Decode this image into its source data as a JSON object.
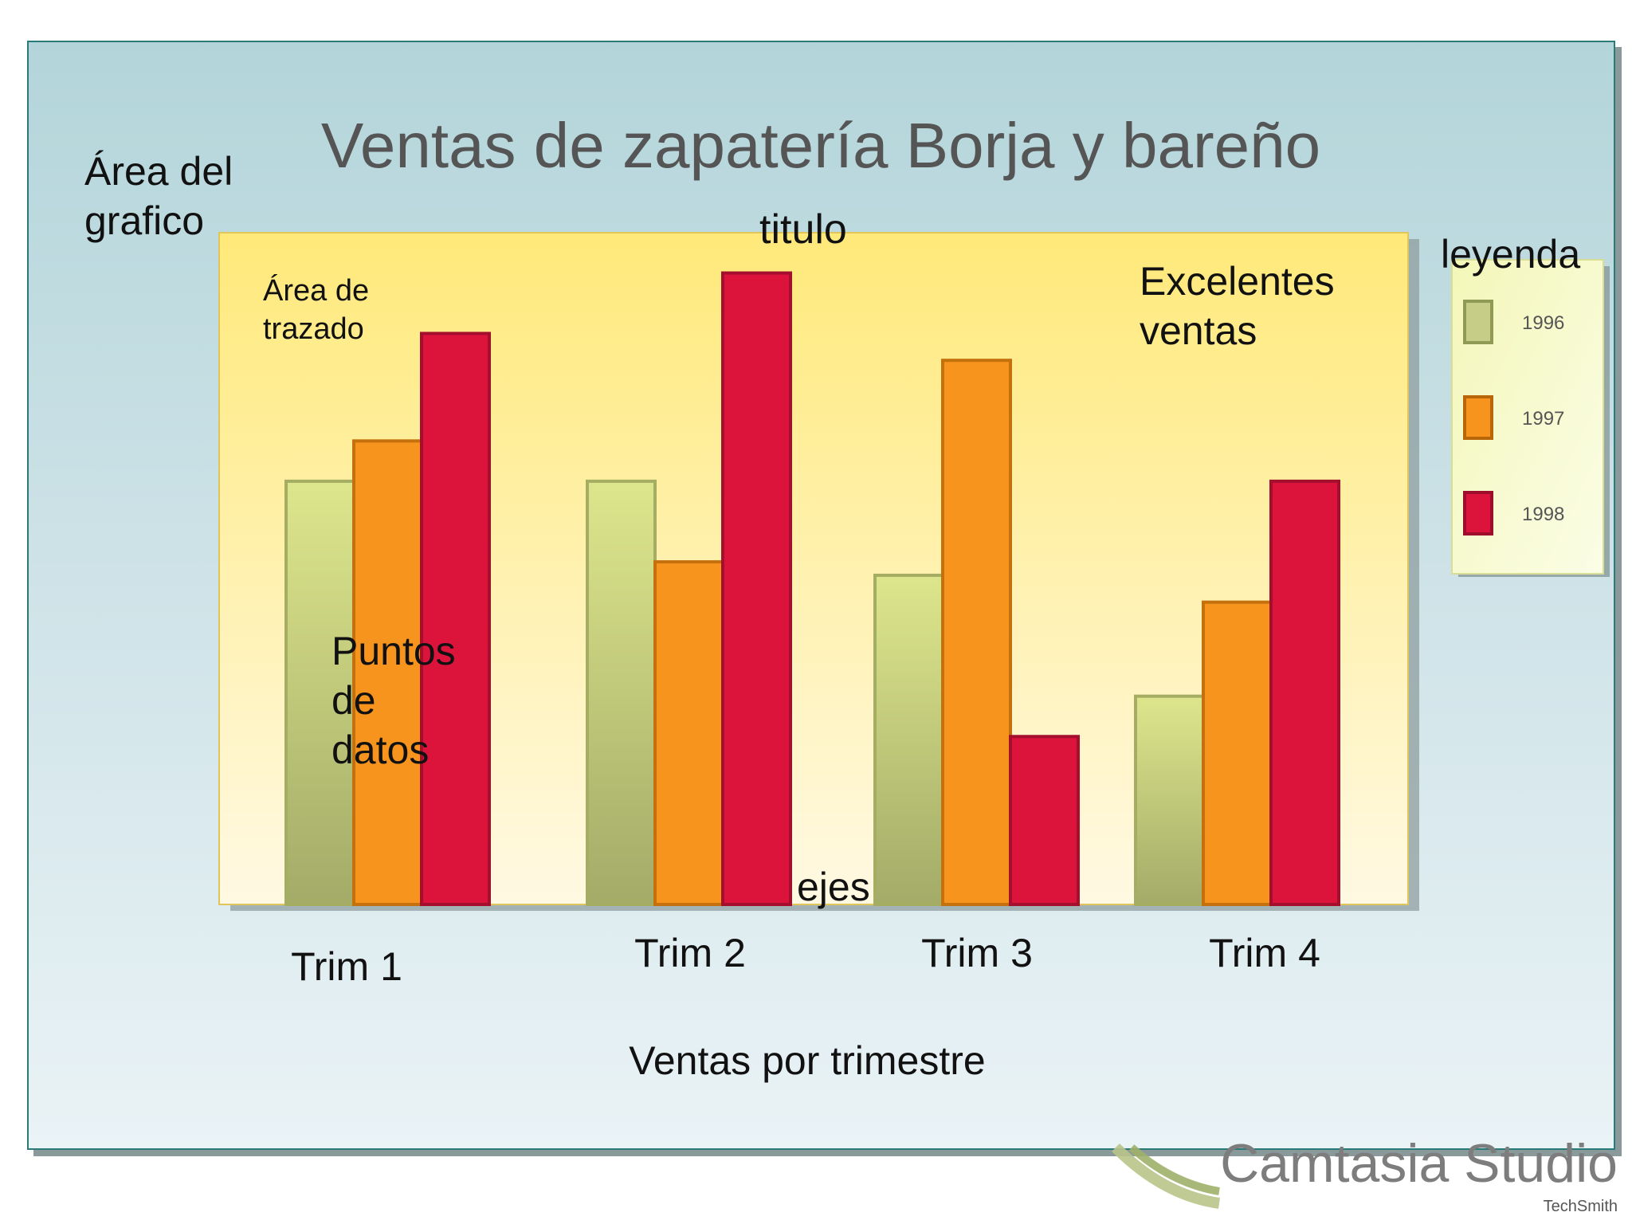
{
  "chart_data": {
    "type": "bar",
    "title": "Ventas de zapatería Borja y bareño",
    "xlabel": "Ventas por trimestre",
    "ylabel": "",
    "categories": [
      "Trim 1",
      "Trim 2",
      "Trim 3",
      "Trim 4"
    ],
    "series": [
      {
        "name": "1996",
        "values": [
          63,
          63,
          49,
          31
        ],
        "color": "#c9d27a"
      },
      {
        "name": "1997",
        "values": [
          69,
          51,
          81,
          45
        ],
        "color": "#f7941d"
      },
      {
        "name": "1998",
        "values": [
          85,
          94,
          25,
          63
        ],
        "color": "#dc143c"
      }
    ],
    "ylim": [
      0,
      100
    ],
    "grid": false,
    "legend_position": "right",
    "annotations": {
      "chart_area": "Área del\ngrafico",
      "plot_area": "Área de\ntrazado",
      "title_label": "titulo",
      "legend_label": "leyenda",
      "data_points": "Puntos\nde\ndatos",
      "axes": "ejes",
      "excellent": "Excelentes\nventas"
    },
    "colors": {
      "background_top": "#b3d5da",
      "plot_top": "#ffe97a",
      "plot_bottom": "#fff9e3"
    }
  },
  "watermark": {
    "brand": "Camtasia Studio",
    "vendor": "TechSmith"
  }
}
